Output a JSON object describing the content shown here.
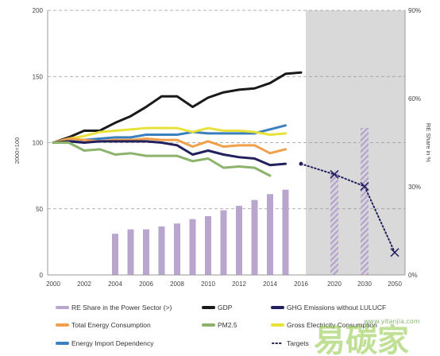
{
  "chart_data": {
    "type": "line",
    "left_axis": {
      "label": "2000=100",
      "ticks": [
        "0",
        "50",
        "100",
        "150",
        "200"
      ],
      "ylim": [
        0,
        200
      ]
    },
    "right_axis": {
      "label": "RE Share in %",
      "ticks": [
        "0%",
        "30%",
        "60%",
        "90%"
      ],
      "ylim": [
        0,
        90
      ]
    },
    "x_ticks": [
      "2000",
      "2002",
      "2004",
      "2006",
      "2008",
      "2010",
      "2012",
      "2014",
      "2016",
      "2020",
      "2030",
      "2050"
    ],
    "shaded_region": {
      "from": "2017",
      "to": "2050",
      "color": "#d9d9d9"
    },
    "gridlines": "dashed",
    "series": [
      {
        "name": "GDP",
        "kind": "line",
        "color": "#1a1a1a",
        "axis": "left",
        "x": [
          2000,
          2001,
          2002,
          2003,
          2004,
          2005,
          2006,
          2007,
          2008,
          2009,
          2010,
          2011,
          2012,
          2013,
          2014,
          2015,
          2016
        ],
        "values": [
          100,
          104,
          109,
          109,
          115,
          120,
          127,
          135,
          135,
          127,
          134,
          138,
          140,
          141,
          145,
          152,
          153
        ]
      },
      {
        "name": "Energy Import Dependency",
        "kind": "line",
        "color": "#3a7fbe",
        "axis": "left",
        "x": [
          2000,
          2001,
          2002,
          2003,
          2004,
          2005,
          2006,
          2007,
          2008,
          2009,
          2010,
          2011,
          2012,
          2013,
          2014,
          2015
        ],
        "values": [
          100,
          101,
          102,
          103,
          104,
          104,
          106,
          106,
          106,
          108,
          107,
          107,
          107,
          107,
          110,
          113
        ]
      },
      {
        "name": "Gross Electricity Consumption",
        "kind": "line",
        "color": "#e8e13a",
        "axis": "left",
        "x": [
          2000,
          2001,
          2002,
          2003,
          2004,
          2005,
          2006,
          2007,
          2008,
          2009,
          2010,
          2011,
          2012,
          2013,
          2014,
          2015
        ],
        "values": [
          100,
          103,
          105,
          108,
          109,
          110,
          111,
          111,
          111,
          108,
          111,
          109,
          109,
          108,
          106,
          107
        ]
      },
      {
        "name": "Total Energy Consumption",
        "kind": "line",
        "color": "#f0a04b",
        "axis": "left",
        "x": [
          2000,
          2001,
          2002,
          2003,
          2004,
          2005,
          2006,
          2007,
          2008,
          2009,
          2010,
          2011,
          2012,
          2013,
          2014,
          2015
        ],
        "values": [
          100,
          103,
          102,
          101,
          102,
          102,
          103,
          102,
          102,
          97,
          101,
          97,
          98,
          98,
          92,
          95
        ]
      },
      {
        "name": "GHG Emissions without LULUCF",
        "kind": "line",
        "color": "#23205e",
        "axis": "left",
        "x": [
          2000,
          2001,
          2002,
          2003,
          2004,
          2005,
          2006,
          2007,
          2008,
          2009,
          2010,
          2011,
          2012,
          2013,
          2014,
          2015
        ],
        "values": [
          100,
          101,
          100,
          101,
          101,
          101,
          101,
          100,
          98,
          91,
          94,
          91,
          89,
          88,
          83,
          84
        ]
      },
      {
        "name": "PM2.5",
        "kind": "line",
        "color": "#8bb36c",
        "axis": "left",
        "x": [
          2000,
          2001,
          2002,
          2003,
          2004,
          2005,
          2006,
          2007,
          2008,
          2009,
          2010,
          2011,
          2012,
          2013,
          2014
        ],
        "values": [
          100,
          100,
          94,
          95,
          91,
          92,
          90,
          90,
          90,
          86,
          88,
          81,
          82,
          81,
          75
        ]
      },
      {
        "name": "RE Share in the Power Sector (>)",
        "kind": "bar",
        "color": "#b8a6cf",
        "axis": "right",
        "x": [
          2004,
          2005,
          2006,
          2007,
          2008,
          2009,
          2010,
          2011,
          2012,
          2013,
          2014,
          2015
        ],
        "values": [
          14,
          15.5,
          15.5,
          16.5,
          17.5,
          19,
          20,
          22,
          23.5,
          25.5,
          27.5,
          29
        ]
      },
      {
        "name": "Targets",
        "kind": "target-bar",
        "color": "#b8a6cf",
        "axis": "right",
        "x": [
          "2020",
          "2030"
        ],
        "values": [
          35,
          50
        ]
      },
      {
        "name": "Targets",
        "kind": "target-line",
        "color": "#23205e",
        "axis": "left",
        "x": [
          "2016",
          "2020",
          "2030",
          "2050"
        ],
        "values": [
          84,
          76,
          67,
          17
        ]
      }
    ]
  },
  "legend": [
    {
      "label": "RE Share in the Power Sector (>)",
      "color": "#b8a6cf",
      "style": "solid"
    },
    {
      "label": "GDP",
      "color": "#1a1a1a",
      "style": "solid"
    },
    {
      "label": "GHG Emissions without LULUCF",
      "color": "#23205e",
      "style": "solid"
    },
    {
      "label": "Total Energy Consumption",
      "color": "#f0a04b",
      "style": "solid"
    },
    {
      "label": "PM2.5",
      "color": "#8bb36c",
      "style": "solid"
    },
    {
      "label": "Gross Electricity Consumption",
      "color": "#e8e13a",
      "style": "solid"
    },
    {
      "label": "Energy Import Dependency",
      "color": "#3a7fbe",
      "style": "solid"
    },
    {
      "label": "Targets",
      "color": "#23205e",
      "style": "dotted"
    }
  ],
  "watermark": {
    "text": "易碳家",
    "url": "www.yitanjia.com"
  }
}
